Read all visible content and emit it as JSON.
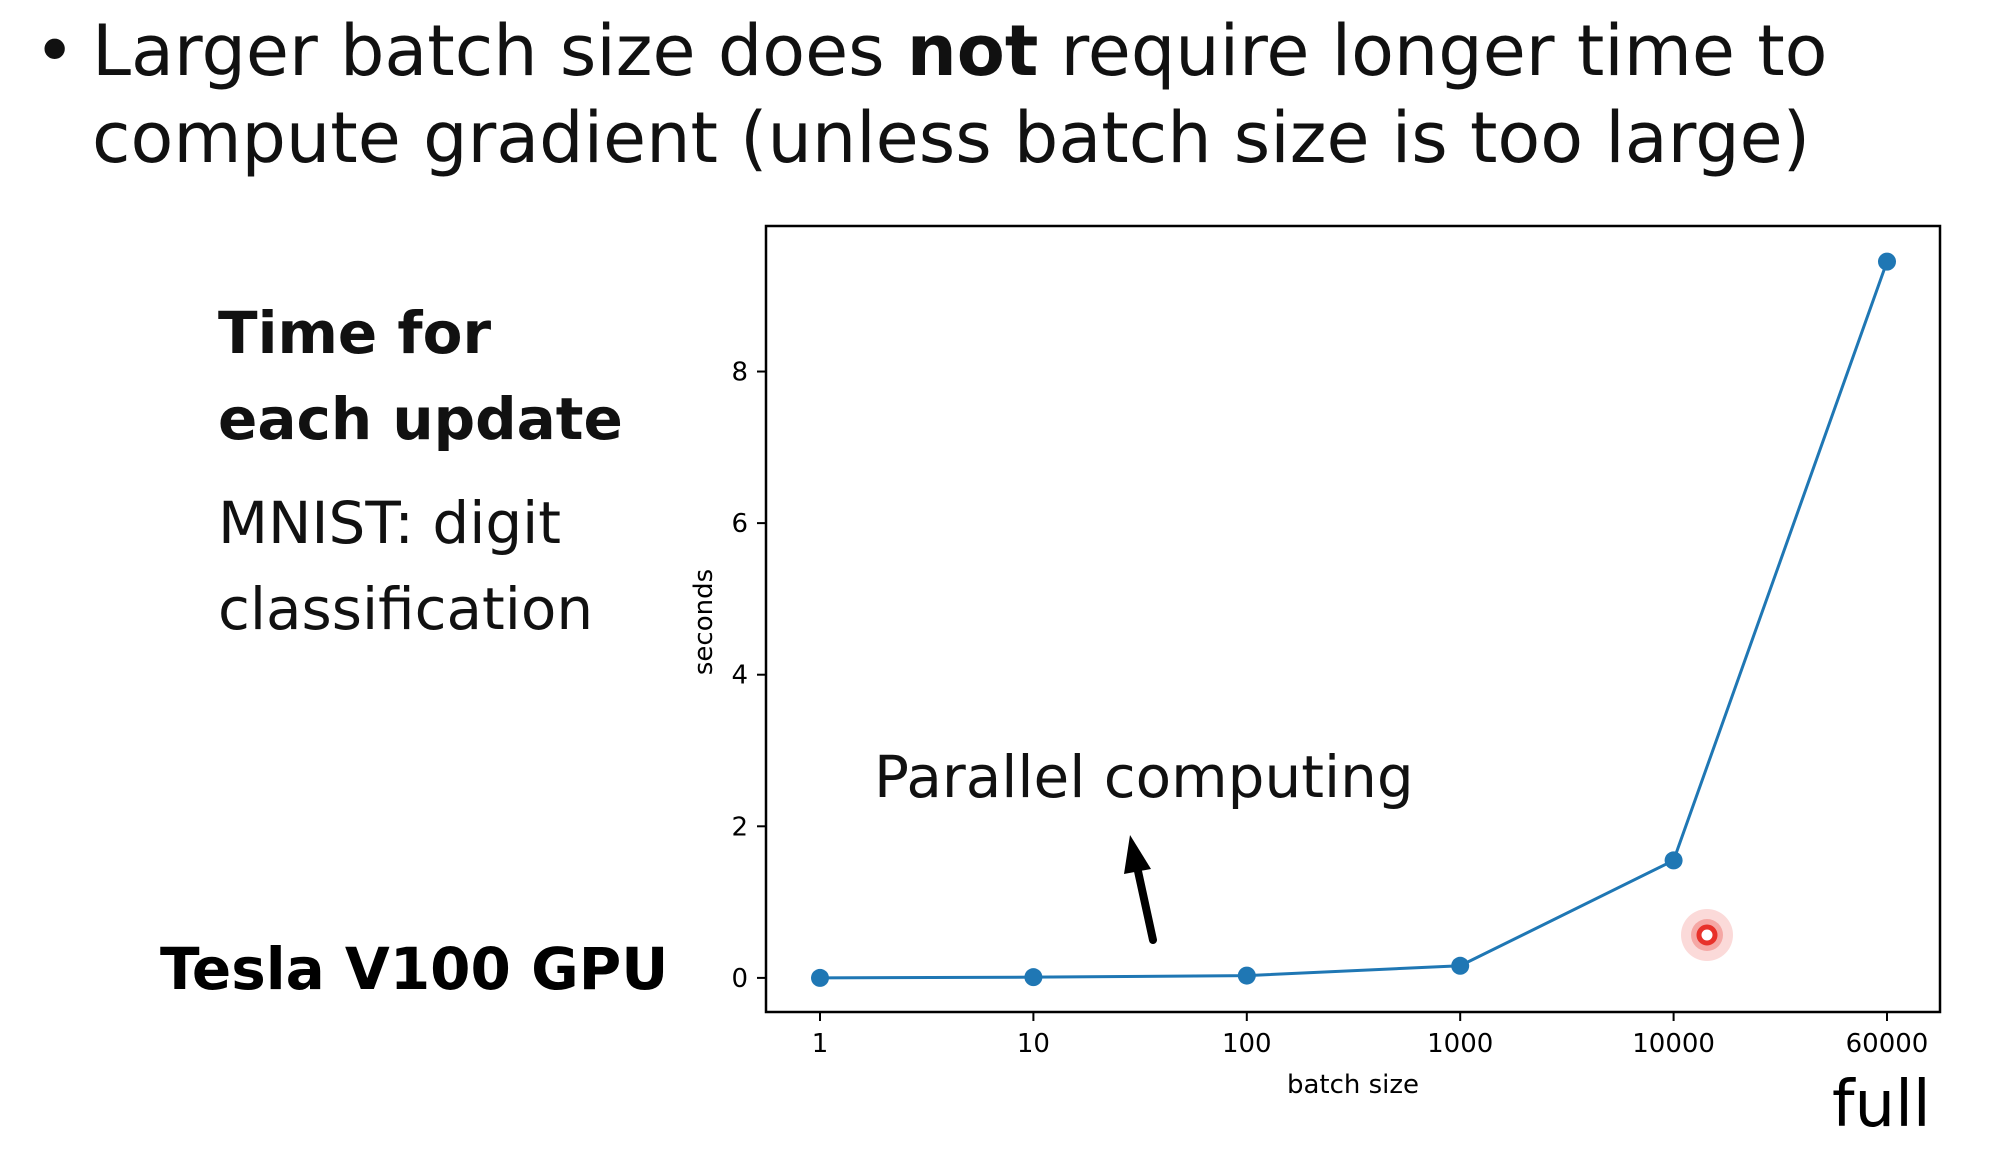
{
  "headline": {
    "bullet": "•",
    "line1_before": "Larger batch size does ",
    "line1_bold": "not",
    "line1_after": " require longer time to",
    "line2": "compute gradient  (unless batch size is too large)"
  },
  "side": {
    "title_line1": "Time for",
    "title_line2": "each update",
    "desc_line1": "MNIST: digit",
    "desc_line2": "classification"
  },
  "gpu_label": "Tesla V100 GPU",
  "full_label": "full",
  "chart_data": {
    "type": "line",
    "categories": [
      "1",
      "10",
      "100",
      "1000",
      "10000",
      "60000"
    ],
    "values": [
      0.0,
      0.01,
      0.03,
      0.16,
      1.55,
      9.45
    ],
    "xlabel": "batch size",
    "ylabel": "seconds",
    "yticks": [
      0,
      2,
      4,
      6,
      8
    ],
    "ylim": [
      -0.45,
      9.92
    ],
    "grid": false,
    "series_color": "#1f77b4",
    "annotation": "Parallel computing",
    "cursor_color": "#e8312a"
  }
}
